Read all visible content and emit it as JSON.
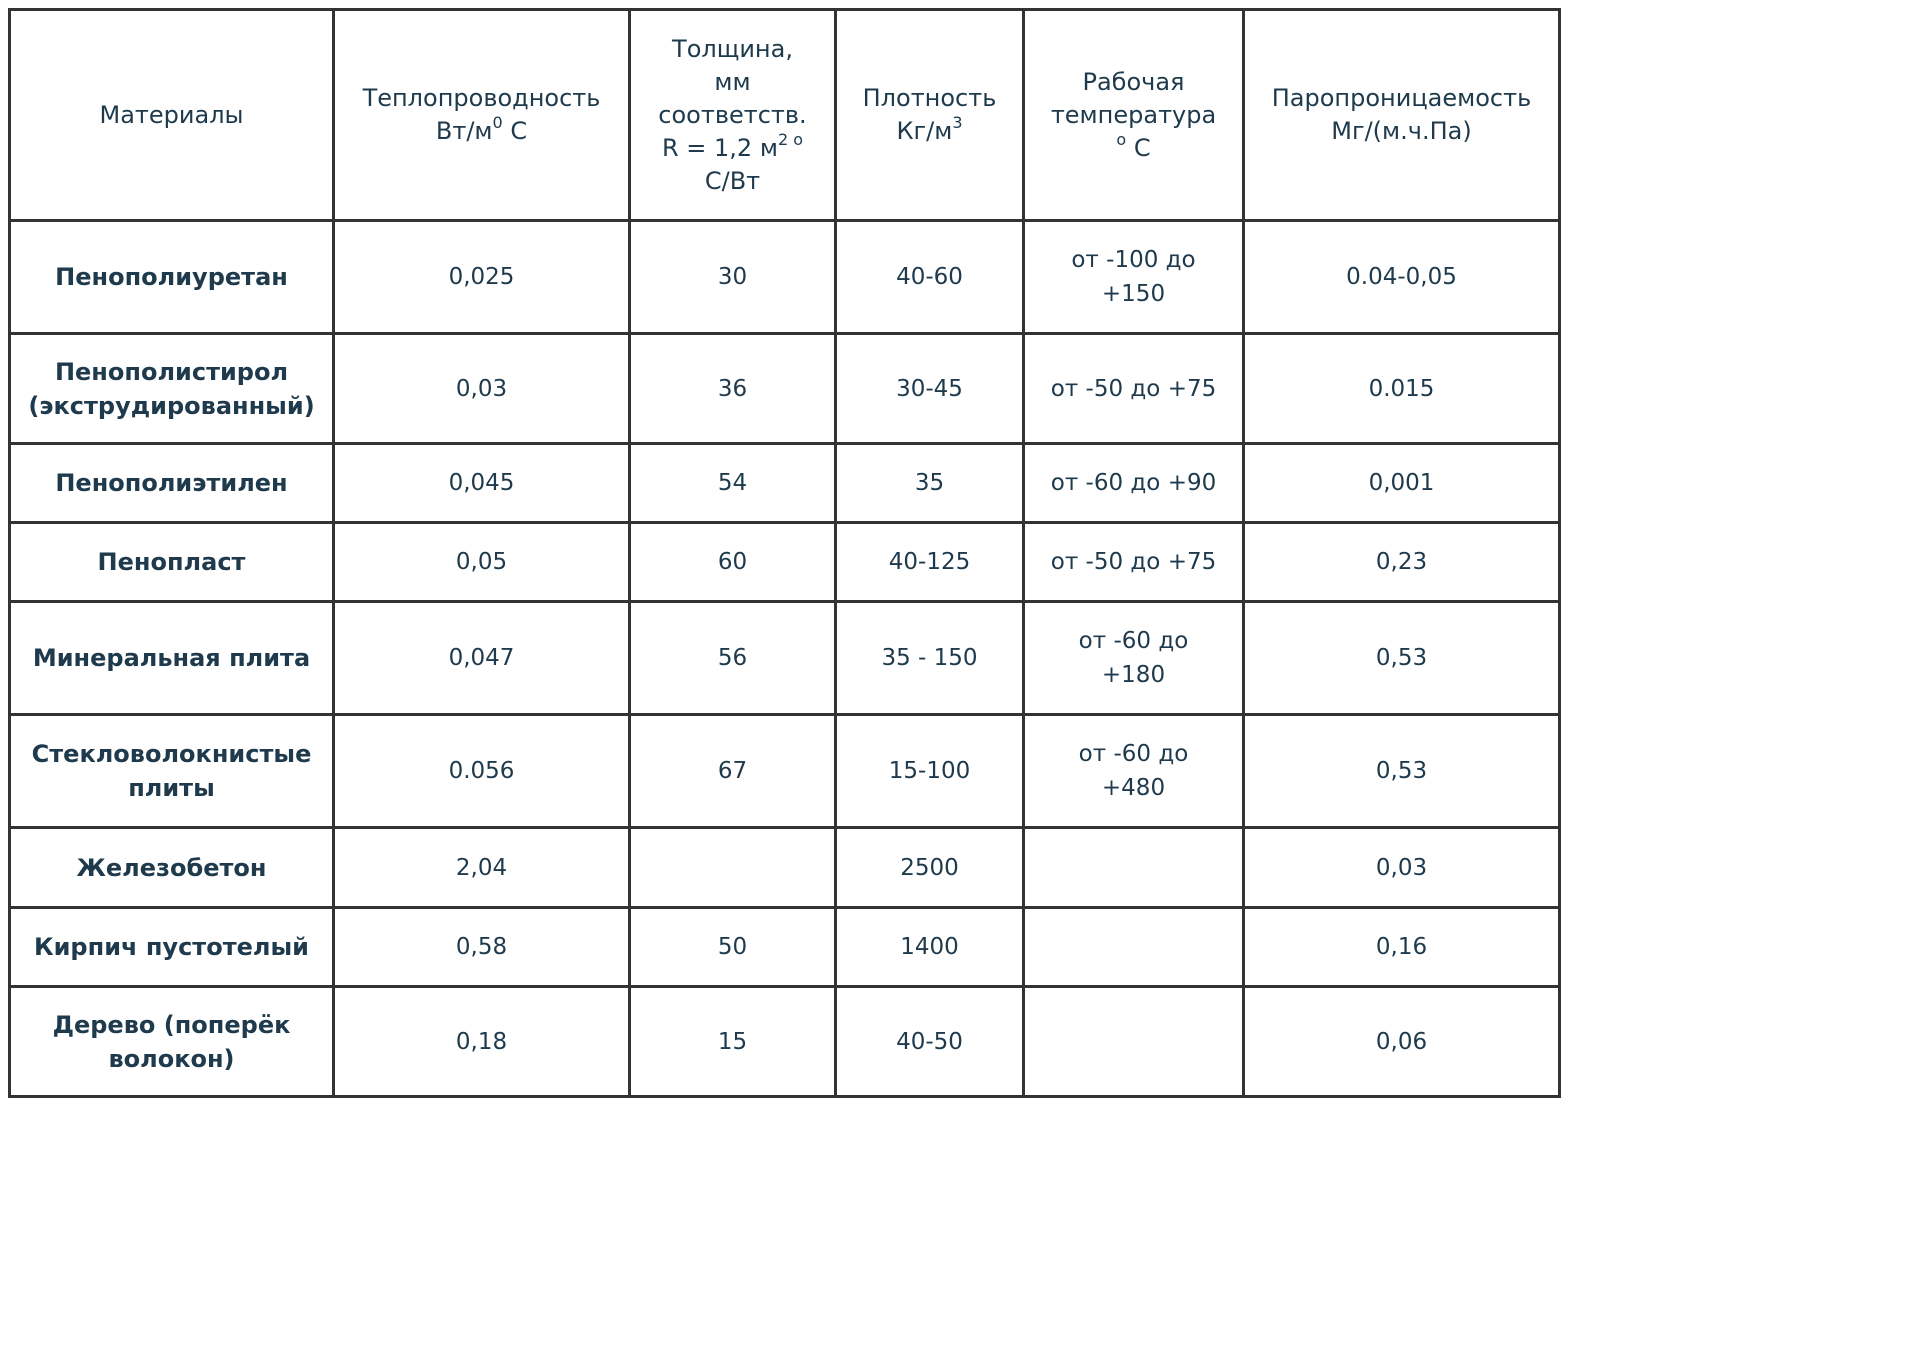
{
  "table": {
    "headers": [
      {
        "lines": [
          "Материалы"
        ]
      },
      {
        "lines": [
          "Теплопроводность"
        ],
        "unit_pre": "Вт/м",
        "unit_sup": "0",
        "unit_post": " С"
      },
      {
        "lines": [
          "Толщина,",
          "мм",
          "соответств."
        ],
        "r_pre": "R = 1,2 м",
        "r_sup": "2 о",
        "r_last": "С/Вт"
      },
      {
        "lines": [
          "Плотность"
        ],
        "unit_pre": "Кг/м",
        "unit_sup": "3"
      },
      {
        "lines": [
          "Рабочая",
          "температура"
        ],
        "unit_sup": "о",
        "unit_post": " С"
      },
      {
        "lines": [
          "Паропроницаемость",
          "Мг/(м.ч.Па)"
        ]
      }
    ],
    "rows": [
      {
        "material": [
          "Пенополиуретан"
        ],
        "conductivity": "0,025",
        "thickness": "30",
        "density": "40-60",
        "temperature": [
          "от -100 до",
          "+150"
        ],
        "vapor": "0.04-0,05"
      },
      {
        "material": [
          "Пенополистирол",
          "(экструдированный)"
        ],
        "conductivity": "0,03",
        "thickness": "36",
        "density": "30-45",
        "temperature": [
          "от -50 до +75"
        ],
        "vapor": "0.015"
      },
      {
        "material": [
          "Пенополиэтилен"
        ],
        "conductivity": "0,045",
        "thickness": "54",
        "density": "35",
        "temperature": [
          "от -60 до +90"
        ],
        "vapor": "0,001"
      },
      {
        "material": [
          "Пенопласт"
        ],
        "conductivity": "0,05",
        "thickness": "60",
        "density": "40-125",
        "temperature": [
          "от -50 до +75"
        ],
        "vapor": "0,23"
      },
      {
        "material": [
          "Минеральная плита"
        ],
        "conductivity": "0,047",
        "thickness": "56",
        "density": "35 - 150",
        "temperature": [
          "от -60 до",
          "+180"
        ],
        "vapor": "0,53"
      },
      {
        "material": [
          "Стекловолокнистые",
          "плиты"
        ],
        "conductivity": "0.056",
        "thickness": "67",
        "density": "15-100",
        "temperature": [
          "от -60 до",
          "+480"
        ],
        "vapor": "0,53"
      },
      {
        "material": [
          "Железобетон"
        ],
        "conductivity": "2,04",
        "thickness": "",
        "density": "2500",
        "temperature": [
          ""
        ],
        "vapor": "0,03"
      },
      {
        "material": [
          "Кирпич пустотелый"
        ],
        "conductivity": "0,58",
        "thickness": "50",
        "density": "1400",
        "temperature": [
          ""
        ],
        "vapor": "0,16"
      },
      {
        "material": [
          "Дерево (поперёк",
          "волокон)"
        ],
        "conductivity": "0,18",
        "thickness": "15",
        "density": "40-50",
        "temperature": [
          ""
        ],
        "vapor": "0,06"
      }
    ]
  }
}
